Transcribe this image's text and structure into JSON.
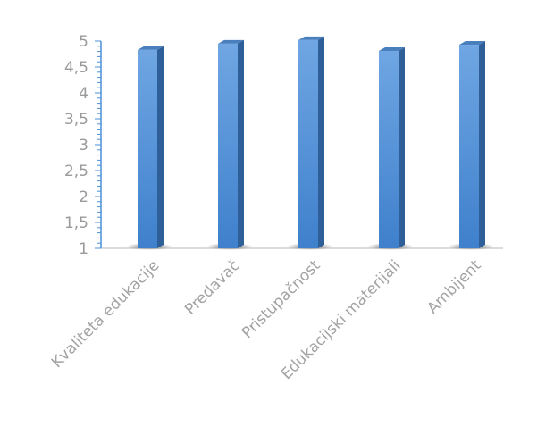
{
  "chart_data": {
    "type": "bar",
    "title": "",
    "xlabel": "",
    "ylabel": "",
    "categories": [
      "Kvaliteta edukacije",
      "Predavač",
      "Pristupačnost",
      "Edukacijski materijali",
      "Ambijent"
    ],
    "values": [
      4.83,
      4.95,
      5.02,
      4.81,
      4.93
    ],
    "ylim": [
      1,
      5
    ],
    "yticks": [
      "1",
      "1,5",
      "2",
      "2,5",
      "3",
      "3,5",
      "4",
      "4,5",
      "5"
    ],
    "grid": false,
    "legend": "none",
    "colors": {
      "bar_front_top": "#6fa6e3",
      "bar_front_bottom": "#3f80cc",
      "bar_side": "#2f5f98",
      "bar_top": "#4a7fbe",
      "axis": "#4a90d9",
      "baseline": "#d0d0d0",
      "label": "#a3a3a3"
    }
  }
}
